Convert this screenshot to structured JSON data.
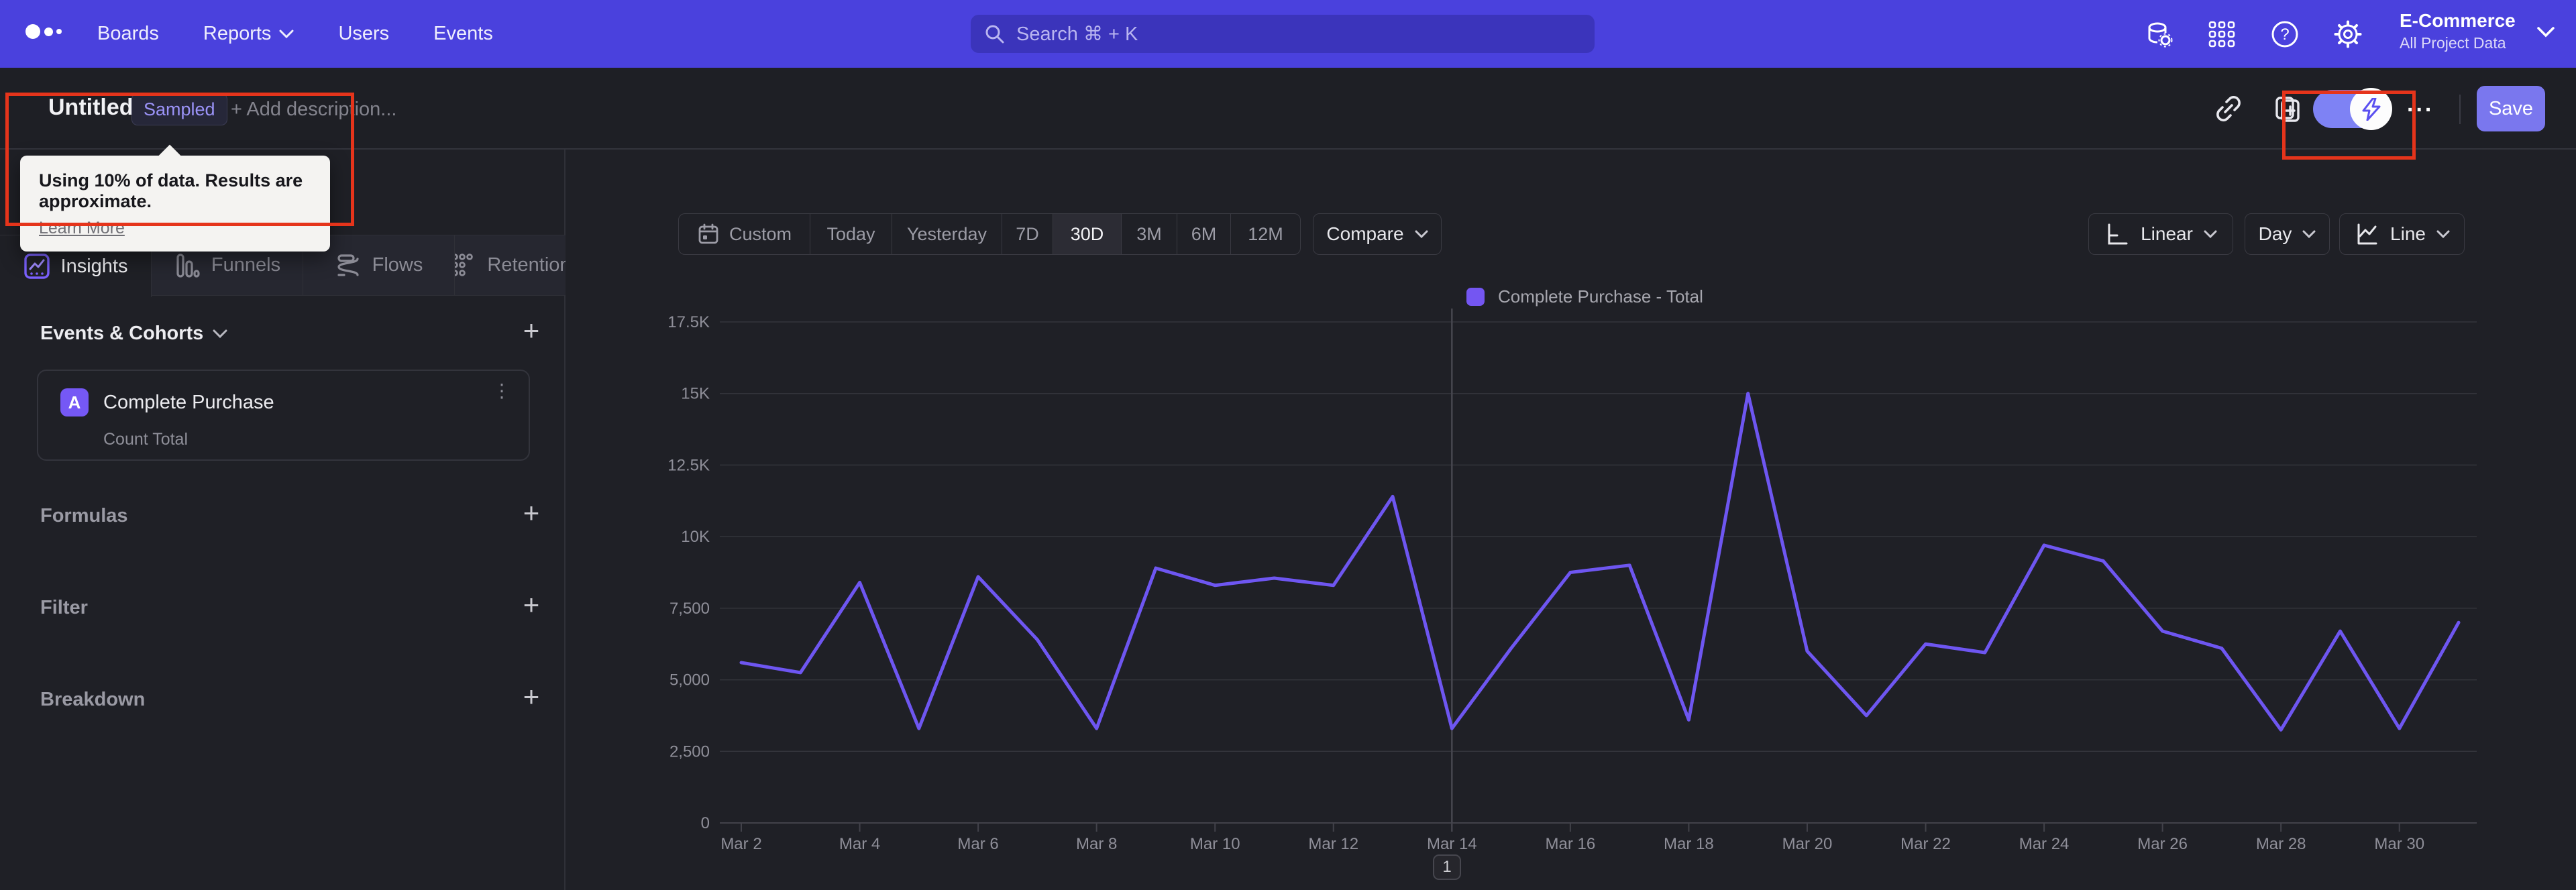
{
  "nav": {
    "items": [
      "Boards",
      "Reports",
      "Users",
      "Events"
    ],
    "search_placeholder": "Search  ⌘ + K",
    "project_name": "E-Commerce",
    "project_subtitle": "All Project Data"
  },
  "titlebar": {
    "title": "Untitled",
    "badge": "Sampled",
    "description_placeholder": "+ Add description...",
    "tooltip_text": "Using 10% of data. Results are approximate.",
    "tooltip_link": "Learn More",
    "more_label": "...",
    "save_label": "Save"
  },
  "sidebar": {
    "tabs": [
      {
        "label": "Insights"
      },
      {
        "label": "Funnels"
      },
      {
        "label": "Flows"
      },
      {
        "label": "Retention"
      }
    ],
    "events_header": "Events & Cohorts",
    "event_row": {
      "letter": "A",
      "name": "Complete Purchase",
      "metric": "Count Total"
    },
    "sections": [
      "Formulas",
      "Filter",
      "Breakdown"
    ],
    "add_symbol": "+"
  },
  "toolbar": {
    "ranges": [
      "Custom",
      "Today",
      "Yesterday",
      "7D",
      "30D",
      "3M",
      "6M",
      "12M"
    ],
    "active_range": "30D",
    "compare_label": "Compare",
    "scale_label": "Linear",
    "interval_label": "Day",
    "chart_type_label": "Line"
  },
  "legend": {
    "label": "Complete Purchase - Total",
    "color": "#7456f2"
  },
  "pagination": {
    "page": "1"
  },
  "chart_data": {
    "type": "line",
    "title": "",
    "x": [
      "Mar 2",
      "Mar 3",
      "Mar 4",
      "Mar 5",
      "Mar 6",
      "Mar 7",
      "Mar 8",
      "Mar 9",
      "Mar 10",
      "Mar 11",
      "Mar 12",
      "Mar 13",
      "Mar 14",
      "Mar 15",
      "Mar 16",
      "Mar 17",
      "Mar 18",
      "Mar 19",
      "Mar 20",
      "Mar 21",
      "Mar 22",
      "Mar 23",
      "Mar 24",
      "Mar 25",
      "Mar 26",
      "Mar 27",
      "Mar 28",
      "Mar 29",
      "Mar 30",
      "Mar 31"
    ],
    "series": [
      {
        "name": "Complete Purchase - Total",
        "color": "#6e56f1",
        "values": [
          5600,
          5250,
          8400,
          3300,
          8600,
          6400,
          3300,
          8900,
          8300,
          8550,
          8300,
          11400,
          3300,
          6100,
          8750,
          9000,
          3600,
          15000,
          6000,
          3750,
          6250,
          5950,
          9700,
          9150,
          6700,
          6100,
          3250,
          6700,
          3300,
          7000
        ]
      }
    ],
    "ylim": [
      0,
      17500
    ],
    "y_ticks": [
      {
        "v": 0,
        "label": "0"
      },
      {
        "v": 2500,
        "label": "2,500"
      },
      {
        "v": 5000,
        "label": "5,000"
      },
      {
        "v": 7500,
        "label": "7,500"
      },
      {
        "v": 10000,
        "label": "10K"
      },
      {
        "v": 12500,
        "label": "12.5K"
      },
      {
        "v": 15000,
        "label": "15K"
      },
      {
        "v": 17500,
        "label": "17.5K"
      }
    ],
    "x_label_every": 2,
    "marker_x": "Mar 14",
    "grid": true,
    "legend_position": "top-center"
  }
}
